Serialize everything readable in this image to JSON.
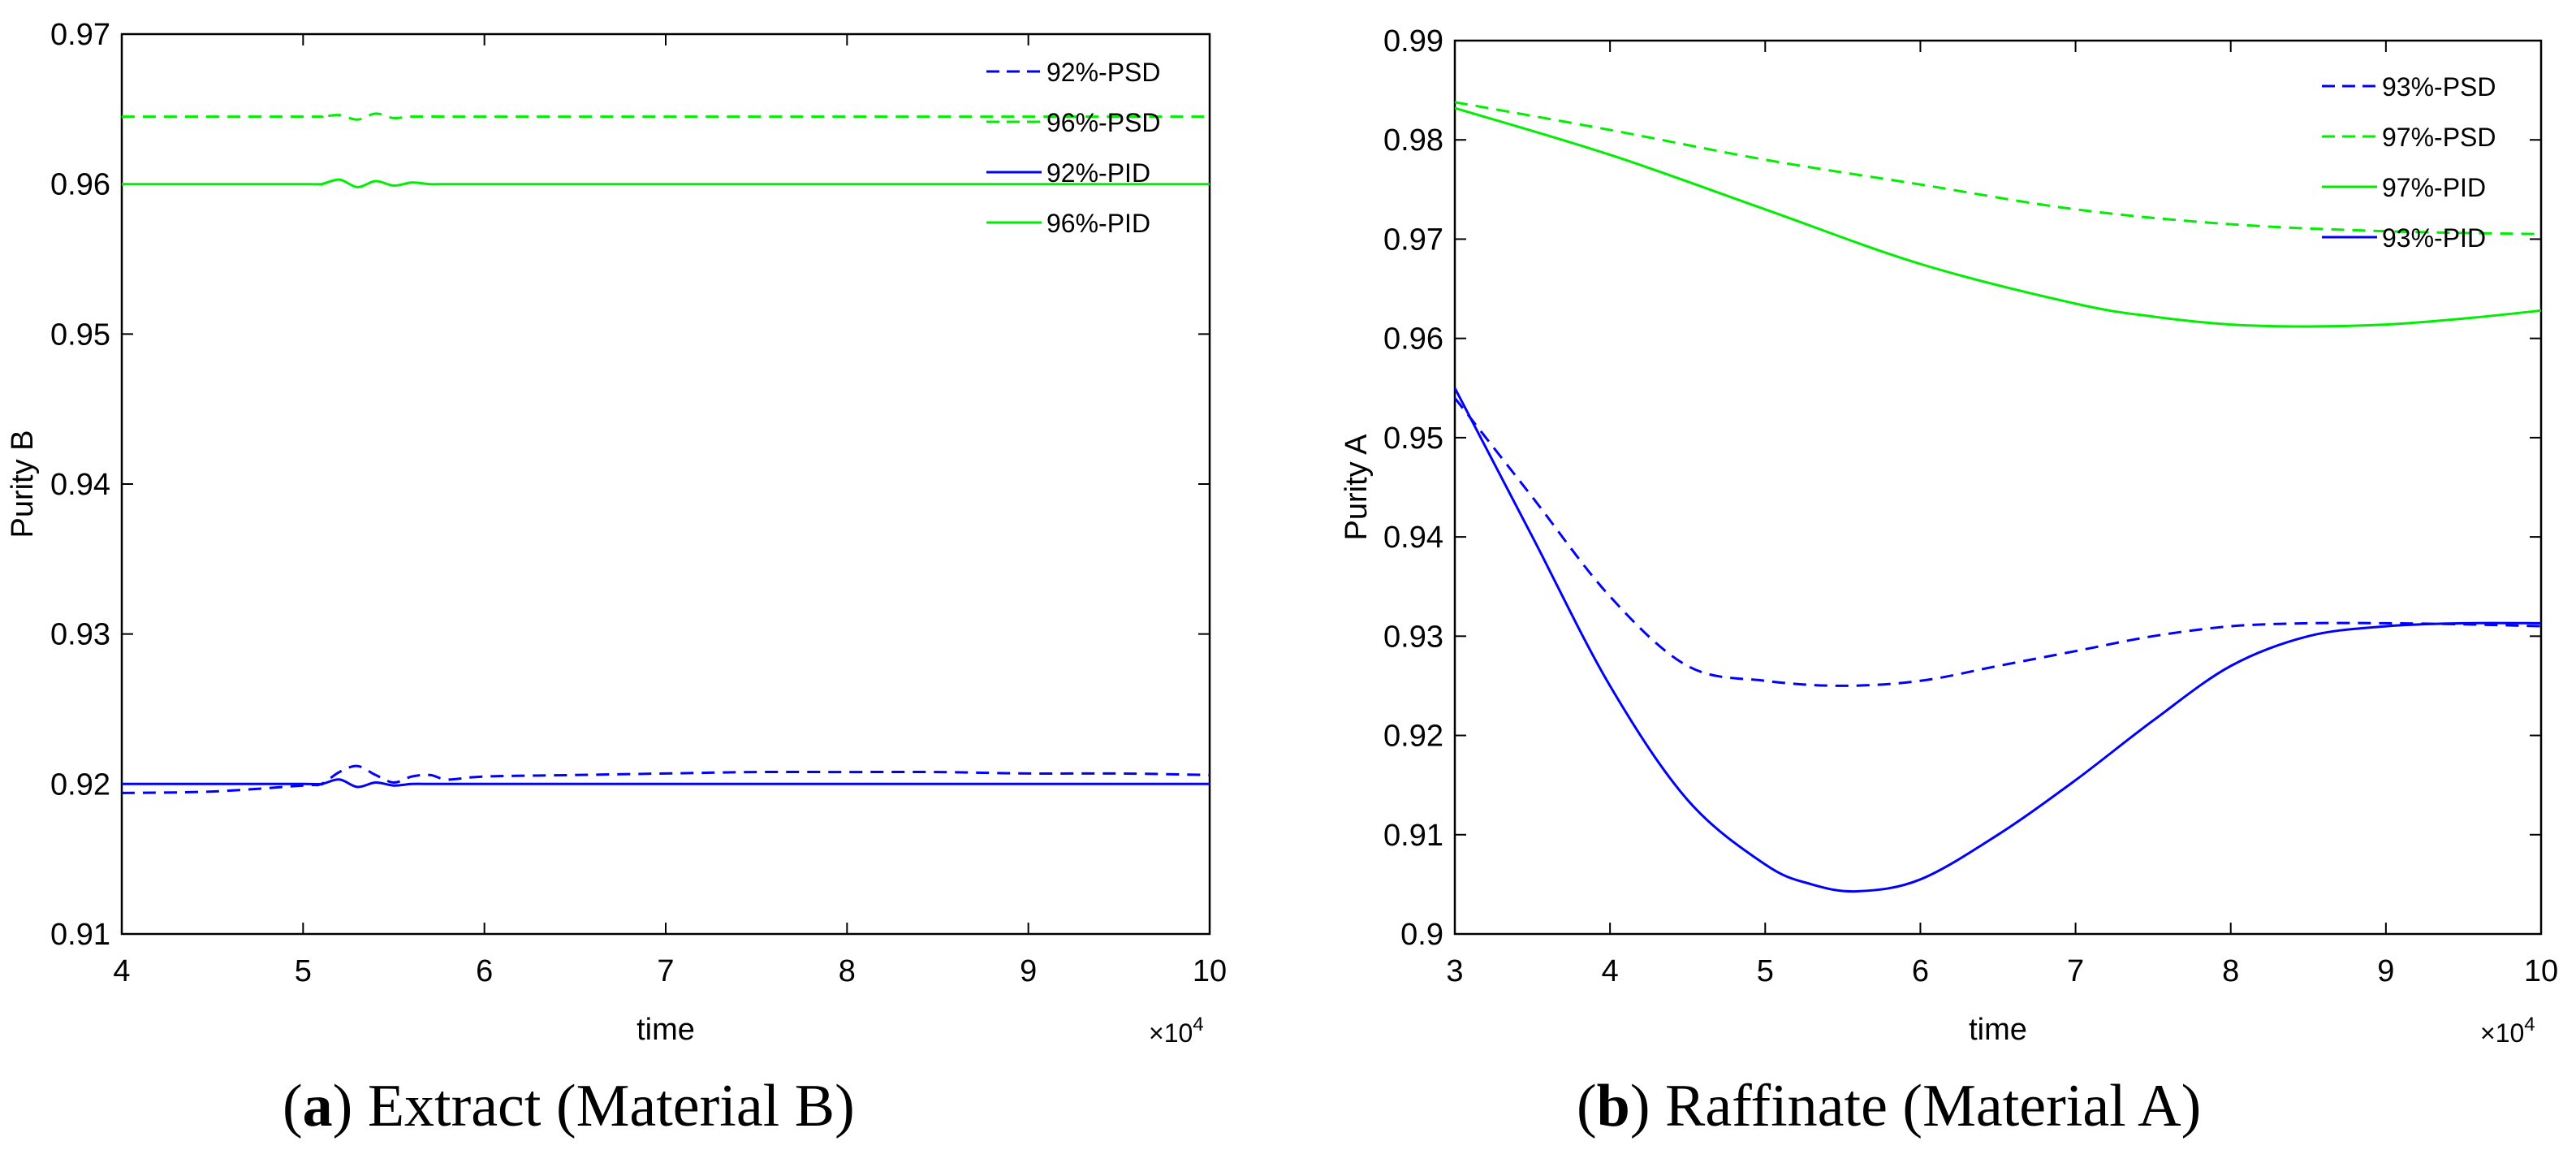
{
  "colors": {
    "blue": "#0000ff",
    "green": "#00ee00",
    "axis": "#000000"
  },
  "captions": [
    {
      "paren_open": "(",
      "letter": "a",
      "paren_close": ")",
      "text": " Extract (Material B)"
    },
    {
      "paren_open": "(",
      "letter": "b",
      "paren_close": ")",
      "text": " Raffinate (Material A)"
    }
  ],
  "chart_data": [
    {
      "type": "line",
      "title": "",
      "xlabel": "time",
      "ylabel": "Purity B",
      "x_multiplier_label": "×10",
      "x_multiplier_exp": "4",
      "xlim": [
        4,
        10
      ],
      "ylim": [
        0.91,
        0.97
      ],
      "xticks": [
        4,
        5,
        6,
        7,
        8,
        9,
        10
      ],
      "yticks": [
        0.91,
        0.92,
        0.93,
        0.94,
        0.95,
        0.96,
        0.97
      ],
      "legend_position": "top-right",
      "series": [
        {
          "name": "92%-PSD",
          "color": "blue",
          "dash": true,
          "x": [
            4.0,
            4.5,
            5.0,
            5.1,
            5.2,
            5.3,
            5.4,
            5.5,
            5.6,
            5.7,
            5.8,
            6.0,
            6.5,
            7.0,
            7.5,
            8.0,
            8.5,
            9.0,
            9.5,
            10.0
          ],
          "y": [
            0.9194,
            0.9195,
            0.9199,
            0.92,
            0.9208,
            0.9212,
            0.9206,
            0.9201,
            0.9205,
            0.9206,
            0.9203,
            0.9205,
            0.9206,
            0.9207,
            0.9208,
            0.9208,
            0.9208,
            0.9207,
            0.9207,
            0.9206
          ]
        },
        {
          "name": "96%-PSD",
          "color": "green",
          "dash": true,
          "x": [
            4.0,
            5.0,
            5.1,
            5.2,
            5.3,
            5.4,
            5.5,
            5.6,
            5.8,
            6.0,
            7.0,
            8.0,
            9.0,
            10.0
          ],
          "y": [
            0.9645,
            0.9645,
            0.9645,
            0.9646,
            0.9643,
            0.9647,
            0.9644,
            0.9645,
            0.9645,
            0.9645,
            0.9645,
            0.9645,
            0.9645,
            0.9645
          ]
        },
        {
          "name": "92%-PID",
          "color": "blue",
          "dash": false,
          "x": [
            4.0,
            5.0,
            5.1,
            5.2,
            5.3,
            5.4,
            5.5,
            5.6,
            5.7,
            5.8,
            6.0,
            7.0,
            8.0,
            9.0,
            10.0
          ],
          "y": [
            0.92,
            0.92,
            0.92,
            0.9203,
            0.9198,
            0.9201,
            0.9199,
            0.92,
            0.92,
            0.92,
            0.92,
            0.92,
            0.92,
            0.92,
            0.92
          ]
        },
        {
          "name": "96%-PID",
          "color": "green",
          "dash": false,
          "x": [
            4.0,
            5.0,
            5.1,
            5.2,
            5.3,
            5.4,
            5.5,
            5.6,
            5.7,
            5.8,
            6.0,
            7.0,
            8.0,
            9.0,
            10.0
          ],
          "y": [
            0.96,
            0.96,
            0.96,
            0.9603,
            0.9598,
            0.9602,
            0.9599,
            0.9601,
            0.96,
            0.96,
            0.96,
            0.96,
            0.96,
            0.96,
            0.96
          ]
        }
      ]
    },
    {
      "type": "line",
      "title": "",
      "xlabel": "time",
      "ylabel": "Purity A",
      "x_multiplier_label": "×10",
      "x_multiplier_exp": "4",
      "xlim": [
        3,
        10
      ],
      "ylim": [
        0.9,
        0.99
      ],
      "xticks": [
        3,
        4,
        5,
        6,
        7,
        8,
        9,
        10
      ],
      "yticks": [
        0.9,
        0.91,
        0.92,
        0.93,
        0.94,
        0.95,
        0.96,
        0.97,
        0.98,
        0.99
      ],
      "legend_position": "top-right",
      "series": [
        {
          "name": "93%-PSD",
          "color": "blue",
          "dash": true,
          "x": [
            3.0,
            3.5,
            4.0,
            4.5,
            5.0,
            5.5,
            6.0,
            6.5,
            7.0,
            7.5,
            8.0,
            8.5,
            9.0,
            9.5,
            10.0
          ],
          "y": [
            0.954,
            0.944,
            0.934,
            0.927,
            0.9255,
            0.925,
            0.9255,
            0.927,
            0.9285,
            0.93,
            0.931,
            0.9313,
            0.9313,
            0.9312,
            0.931
          ]
        },
        {
          "name": "97%-PSD",
          "color": "green",
          "dash": true,
          "x": [
            3.0,
            4.0,
            5.0,
            6.0,
            7.0,
            8.0,
            9.0,
            10.0
          ],
          "y": [
            0.9838,
            0.981,
            0.978,
            0.9755,
            0.973,
            0.9715,
            0.9708,
            0.9705
          ]
        },
        {
          "name": "97%-PID",
          "color": "green",
          "dash": false,
          "x": [
            3.0,
            4.0,
            5.0,
            6.0,
            7.0,
            7.5,
            8.0,
            8.5,
            9.0,
            9.5,
            10.0
          ],
          "y": [
            0.9832,
            0.9785,
            0.973,
            0.9675,
            0.9635,
            0.9622,
            0.9614,
            0.9612,
            0.9614,
            0.962,
            0.9628
          ]
        },
        {
          "name": "93%-PID",
          "color": "blue",
          "dash": false,
          "x": [
            3.0,
            3.5,
            4.0,
            4.5,
            5.0,
            5.3,
            5.6,
            6.0,
            6.5,
            7.0,
            7.5,
            8.0,
            8.5,
            9.0,
            9.5,
            10.0
          ],
          "y": [
            0.955,
            0.94,
            0.925,
            0.9135,
            0.907,
            0.905,
            0.9043,
            0.9055,
            0.91,
            0.9155,
            0.9215,
            0.927,
            0.93,
            0.931,
            0.9313,
            0.9313
          ]
        }
      ]
    }
  ]
}
